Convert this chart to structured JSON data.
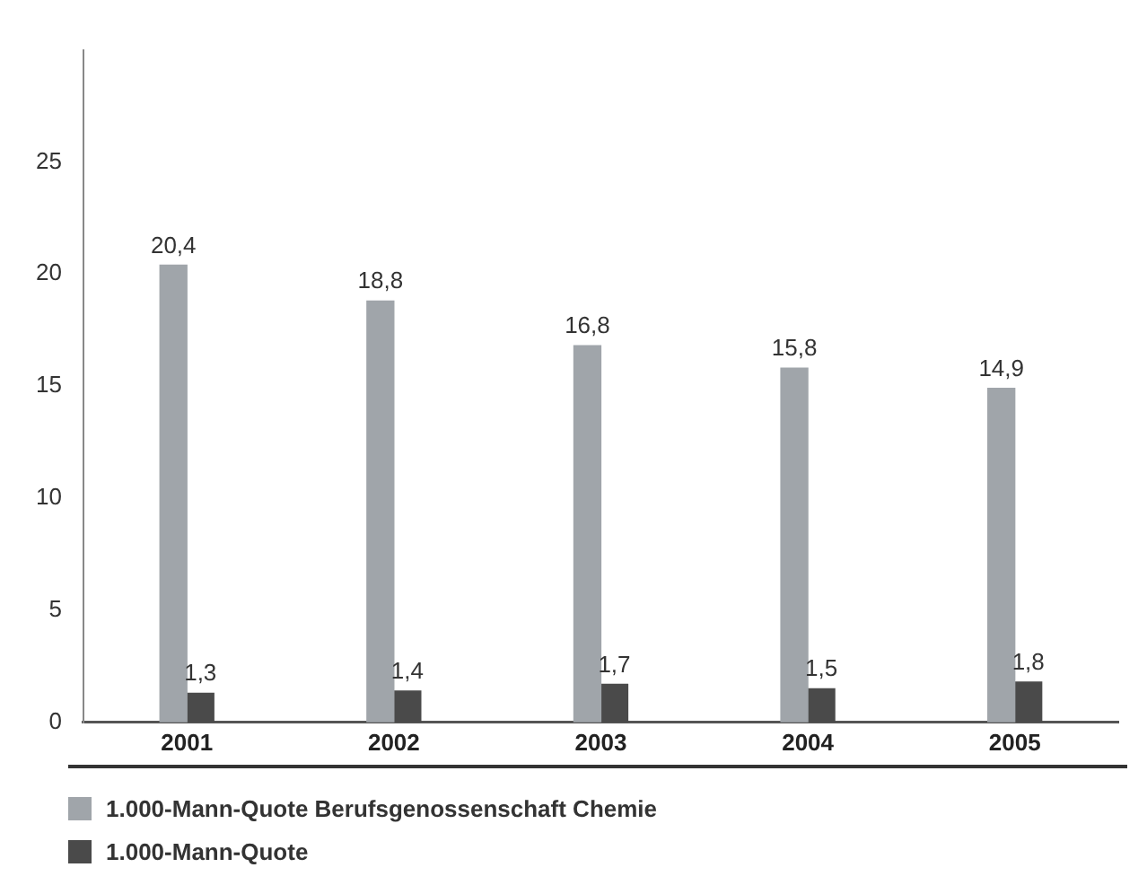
{
  "chart_data": {
    "type": "bar",
    "categories": [
      "2001",
      "2002",
      "2003",
      "2004",
      "2005"
    ],
    "series": [
      {
        "name": "1.000-Mann-Quote Berufsgenossenschaft Chemie",
        "color": "#a0a5aa",
        "values": [
          20.4,
          18.8,
          16.8,
          15.8,
          14.9
        ],
        "value_labels": [
          "20,4",
          "18,8",
          "16,8",
          "15,8",
          "14,9"
        ]
      },
      {
        "name": "1.000-Mann-Quote",
        "color": "#4a4a4a",
        "values": [
          1.3,
          1.4,
          1.7,
          1.5,
          1.8
        ],
        "value_labels": [
          "1,3",
          "1,4",
          "1,7",
          "1,5",
          "1,8"
        ]
      }
    ],
    "ylim": [
      0,
      30
    ],
    "yticks": [
      0,
      5,
      10,
      15,
      20,
      25
    ],
    "grid": false,
    "legend": "bottom"
  }
}
